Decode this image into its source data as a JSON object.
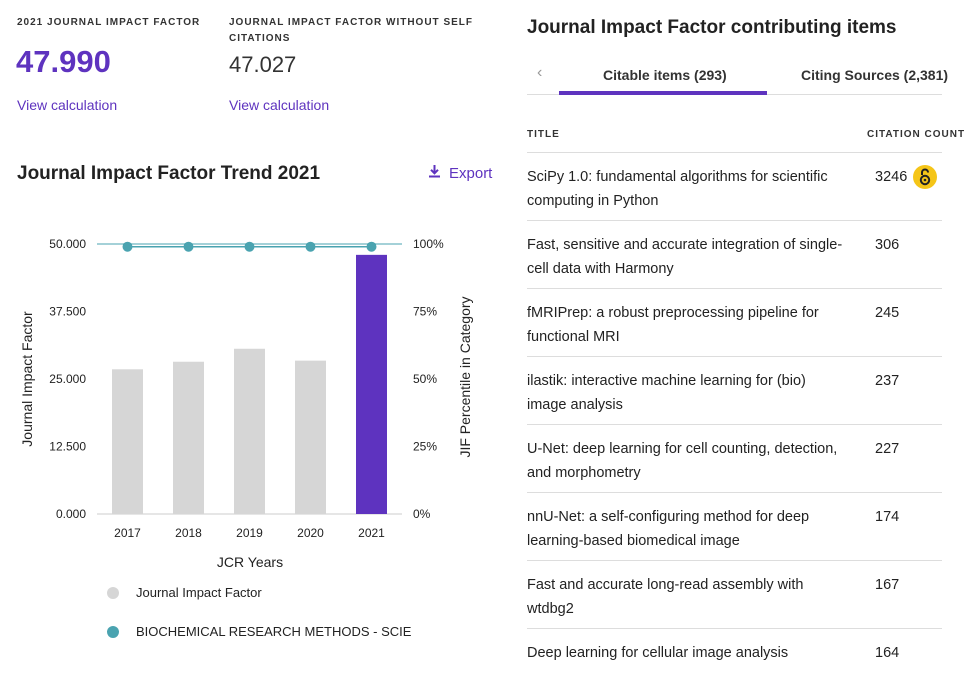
{
  "metrics": {
    "jif_label": "2021 JOURNAL IMPACT FACTOR",
    "jif_value": "47.990",
    "jif_link": "View calculation",
    "jif_no_self_label_line1": "JOURNAL IMPACT FACTOR WITHOUT SELF",
    "jif_no_self_label_line2": "CITATIONS",
    "jif_no_self_value": "47.027",
    "jif_no_self_link": "View calculation"
  },
  "trend": {
    "title": "Journal Impact Factor Trend 2021",
    "export_label": "Export",
    "legend_jif": "Journal Impact Factor",
    "legend_category": "BIOCHEMICAL RESEARCH METHODS - SCIE",
    "colors": {
      "bar": "#d6d6d6",
      "bar_current": "#5e33bf",
      "percentile": "#4aa3b0"
    }
  },
  "chart_data": {
    "type": "bar",
    "categories": [
      "2017",
      "2018",
      "2019",
      "2020",
      "2021"
    ],
    "series": [
      {
        "name": "Journal Impact Factor",
        "values": [
          26.8,
          28.2,
          30.6,
          28.4,
          47.99
        ],
        "axis": "left"
      },
      {
        "name": "BIOCHEMICAL RESEARCH METHODS - SCIE",
        "values": [
          99,
          99,
          99,
          99,
          99
        ],
        "axis": "right",
        "type": "line"
      }
    ],
    "xlabel": "JCR Years",
    "ylabel": "Journal Impact Factor",
    "ylabel_right": "JIF Percentile in Category",
    "ylim": [
      0,
      50
    ],
    "ylim_right": [
      0,
      100
    ],
    "yticks": [
      "0.000",
      "12.500",
      "25.000",
      "37.500",
      "50.000"
    ],
    "yticks_right": [
      "0%",
      "25%",
      "50%",
      "75%",
      "100%"
    ]
  },
  "contributing": {
    "title": "Journal Impact Factor contributing items",
    "tab_prev_icon": "chevron-left-icon",
    "tab_citable": "Citable items (293)",
    "tab_citing": "Citing Sources (2,381)",
    "col_title": "TITLE",
    "col_count": "CITATION COUNT",
    "rows": [
      {
        "title": "SciPy 1.0: fundamental algorithms for scientific computing in Python",
        "count": "3246",
        "open_access": true
      },
      {
        "title": "Fast, sensitive and accurate integration of single-cell data with Harmony",
        "count": "306"
      },
      {
        "title": "fMRIPrep: a robust preprocessing pipeline for functional MRI",
        "count": "245"
      },
      {
        "title": "ilastik: interactive machine learning for (bio) image analysis",
        "count": "237"
      },
      {
        "title": "U-Net: deep learning for cell counting, detection, and morphometry",
        "count": "227"
      },
      {
        "title": "nnU-Net: a self-configuring method for deep learning-based biomedical image",
        "count": "174"
      },
      {
        "title": "Fast and accurate long-read assembly with wtdbg2",
        "count": "167"
      },
      {
        "title": "Deep learning for cellular image analysis",
        "count": "164"
      }
    ]
  }
}
